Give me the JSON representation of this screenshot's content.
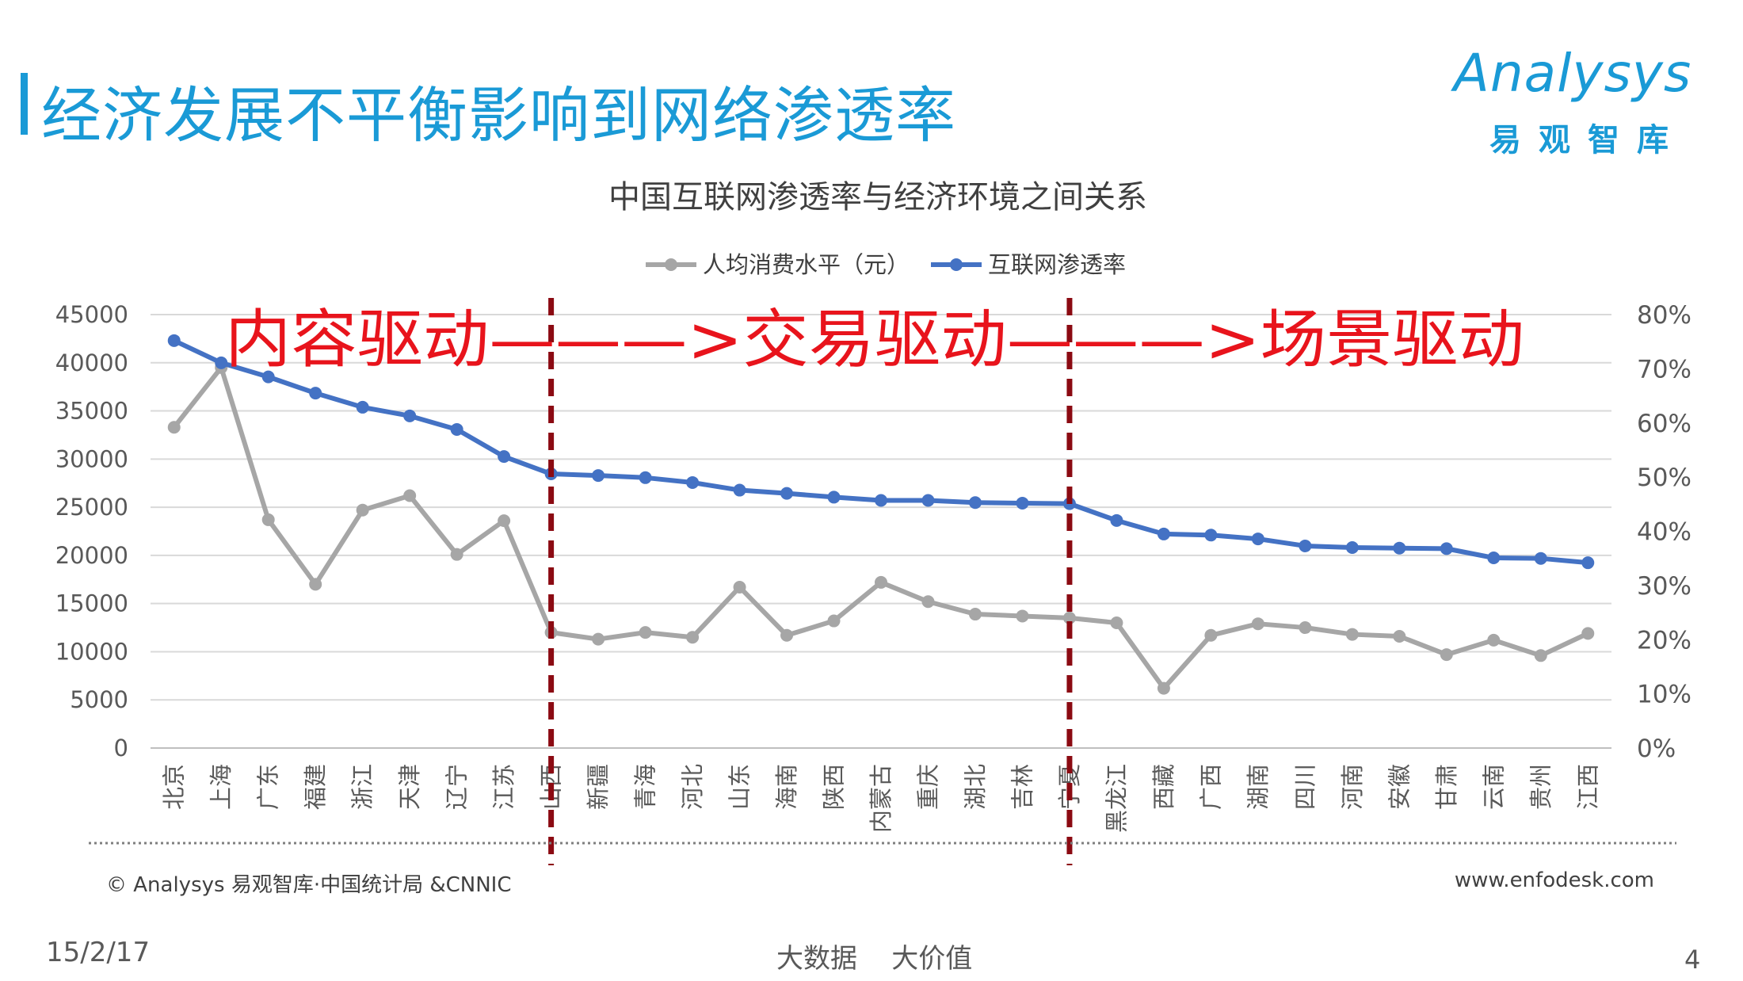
{
  "slide": {
    "title": "经济发展不平衡影响到网络渗透率",
    "logo_word": "Analysys",
    "logo_cn": "易观智库",
    "source": "© Analysys 易观智库·中国统计局 &CNNIC",
    "website": "www.enfodesk.com",
    "date": "15/2/17",
    "slogan": "大数据    大价值",
    "page_number": "4",
    "accent_color": "#1a9ad6"
  },
  "chart_data": {
    "type": "line",
    "title": "中国互联网渗透率与经济环境之间关系",
    "banner": "内容驱动———>交易驱动———>场景驱动",
    "legend_position": "top",
    "grid": true,
    "categories": [
      "北京",
      "上海",
      "广东",
      "福建",
      "浙江",
      "天津",
      "辽宁",
      "江苏",
      "山西",
      "新疆",
      "青海",
      "河北",
      "山东",
      "海南",
      "陕西",
      "内蒙古",
      "重庆",
      "湖北",
      "吉林",
      "宁夏",
      "黑龙江",
      "西藏",
      "广西",
      "湖南",
      "四川",
      "河南",
      "安徽",
      "甘肃",
      "云南",
      "贵州",
      "江西"
    ],
    "dividers_after": [
      "山西",
      "宁夏"
    ],
    "left_axis": {
      "min": 0,
      "max": 45000,
      "ticks": [
        "0",
        "5000",
        "10000",
        "15000",
        "20000",
        "25000",
        "30000",
        "35000",
        "40000",
        "45000"
      ]
    },
    "right_axis": {
      "min": 0,
      "max": 80,
      "ticks": [
        "0%",
        "10%",
        "20%",
        "30%",
        "40%",
        "50%",
        "60%",
        "70%",
        "80%"
      ]
    },
    "series": [
      {
        "name": "人均消费水平（元）",
        "axis": "left",
        "color": "#a6a6a6",
        "values": [
          33300,
          39500,
          23700,
          17000,
          24700,
          26200,
          20100,
          23600,
          12000,
          11300,
          12000,
          11500,
          16700,
          11700,
          13200,
          17200,
          15200,
          13900,
          13700,
          13500,
          13000,
          6200,
          11700,
          12900,
          12500,
          11800,
          11600,
          9700,
          11200,
          9600,
          11900
        ]
      },
      {
        "name": "互联网渗透率",
        "axis": "right",
        "color": "#4472c4",
        "values": [
          75.2,
          71.1,
          68.5,
          65.5,
          62.9,
          61.3,
          58.8,
          53.8,
          50.6,
          50.3,
          49.9,
          49.0,
          47.6,
          47.0,
          46.3,
          45.7,
          45.7,
          45.3,
          45.2,
          45.1,
          42.0,
          39.5,
          39.3,
          38.6,
          37.3,
          37.0,
          36.9,
          36.8,
          35.1,
          35.0,
          34.2
        ]
      }
    ]
  }
}
